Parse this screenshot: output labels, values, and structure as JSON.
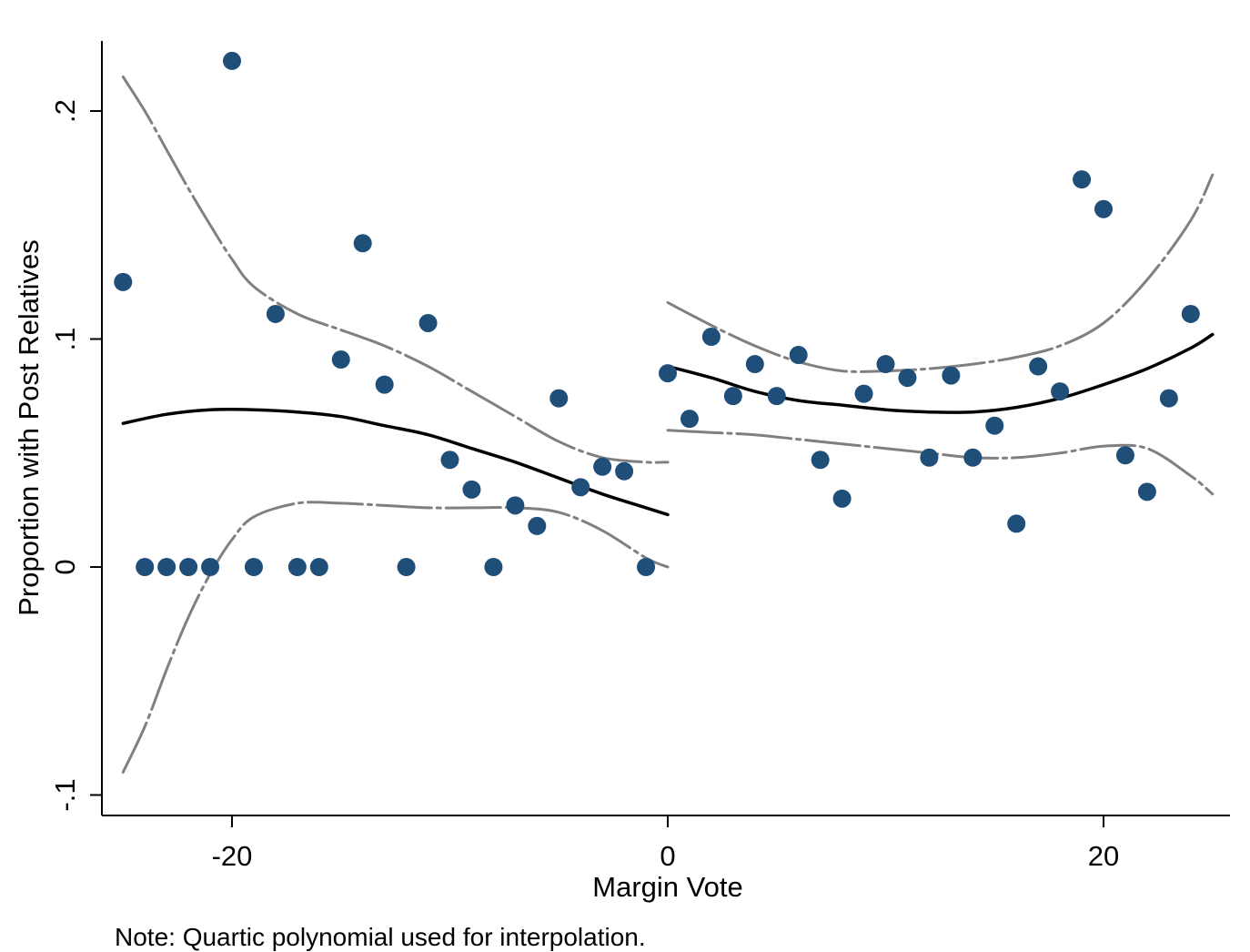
{
  "chart_data": {
    "type": "scatter",
    "title": "",
    "xlabel": "Margin Vote",
    "ylabel": "Proportion with Post Relatives",
    "xlim": [
      -26,
      26
    ],
    "ylim": [
      -0.109,
      0.23
    ],
    "x_ticks": [
      -20,
      0,
      20
    ],
    "x_tick_labels": [
      "-20",
      "0",
      "20"
    ],
    "y_ticks": [
      -0.1,
      0,
      0.1,
      0.2
    ],
    "y_tick_labels": [
      "-.1",
      "0",
      ".1",
      ".2"
    ],
    "grid": false,
    "legend": "none",
    "note": "Note: Quartic polynomial used for interpolation.",
    "points": {
      "color": "#1f4e79",
      "x": [
        -25,
        -24,
        -23,
        -22,
        -21,
        -20,
        -19,
        -18,
        -17,
        -16,
        -15,
        -14,
        -13,
        -12,
        -11,
        -10,
        -9,
        -8,
        -7,
        -6,
        -5,
        -4,
        -3,
        -2,
        -1,
        0,
        1,
        2,
        3,
        4,
        5,
        6,
        7,
        8,
        9,
        10,
        11,
        12,
        13,
        14,
        15,
        16,
        17,
        18,
        19,
        20,
        21,
        22,
        23,
        24
      ],
      "y": [
        0.125,
        0,
        0,
        0,
        0,
        0.222,
        0,
        0.111,
        0,
        0,
        0.091,
        0.142,
        0.08,
        0,
        0.107,
        0.047,
        0.034,
        0,
        0.027,
        0.018,
        0.074,
        0.035,
        0.044,
        0.042,
        0,
        0.085,
        0.065,
        0.101,
        0.075,
        0.089,
        0.075,
        0.093,
        0.047,
        0.03,
        0.076,
        0.089,
        0.083,
        0.048,
        0.084,
        0.048,
        0.062,
        0.019,
        0.088,
        0.077,
        0.17,
        0.157,
        0.049,
        0.033,
        0.074,
        0.111
      ]
    },
    "series": [
      {
        "role": "fit",
        "color": "#000000",
        "dash": "solid",
        "x": [
          -25,
          -23,
          -21,
          -19,
          -17,
          -15,
          -13,
          -11,
          -9,
          -7,
          -5,
          -3,
          -1,
          0
        ],
        "y": [
          0.063,
          0.067,
          0.069,
          0.069,
          0.068,
          0.066,
          0.062,
          0.058,
          0.052,
          0.046,
          0.039,
          0.032,
          0.026,
          0.023
        ]
      },
      {
        "role": "fit",
        "color": "#000000",
        "dash": "solid",
        "x": [
          0,
          2,
          4,
          6,
          8,
          10,
          12,
          14,
          16,
          18,
          20,
          22,
          24,
          25
        ],
        "y": [
          0.088,
          0.083,
          0.077,
          0.073,
          0.071,
          0.069,
          0.068,
          0.068,
          0.07,
          0.074,
          0.08,
          0.087,
          0.096,
          0.102
        ]
      },
      {
        "role": "ci-upper",
        "color": "#808080",
        "dash": "dashed",
        "x": [
          -25,
          -24,
          -23,
          -22,
          -21,
          -20,
          -19,
          -17,
          -15,
          -13,
          -11,
          -9,
          -7,
          -5,
          -3,
          -1,
          0
        ],
        "y": [
          0.215,
          0.2,
          0.183,
          0.166,
          0.15,
          0.135,
          0.123,
          0.111,
          0.104,
          0.097,
          0.088,
          0.077,
          0.066,
          0.055,
          0.048,
          0.046,
          0.046
        ]
      },
      {
        "role": "ci-lower",
        "color": "#808080",
        "dash": "dashed",
        "x": [
          -25,
          -24,
          -23,
          -22,
          -21,
          -20,
          -19,
          -17,
          -15,
          -13,
          -11,
          -9,
          -7,
          -5,
          -3,
          -1,
          0
        ],
        "y": [
          -0.09,
          -0.07,
          -0.045,
          -0.022,
          -0.003,
          0.012,
          0.022,
          0.028,
          0.028,
          0.027,
          0.026,
          0.026,
          0.026,
          0.024,
          0.016,
          0.004,
          0
        ]
      },
      {
        "role": "ci-upper",
        "color": "#808080",
        "dash": "dashed",
        "x": [
          0,
          2,
          4,
          6,
          8,
          10,
          12,
          14,
          16,
          18,
          20,
          22,
          24,
          25
        ],
        "y": [
          0.116,
          0.106,
          0.097,
          0.09,
          0.086,
          0.086,
          0.087,
          0.089,
          0.092,
          0.097,
          0.107,
          0.126,
          0.152,
          0.172
        ]
      },
      {
        "role": "ci-lower",
        "color": "#808080",
        "dash": "dashed",
        "x": [
          0,
          2,
          4,
          6,
          8,
          10,
          12,
          14,
          16,
          18,
          20,
          22,
          24,
          25
        ],
        "y": [
          0.06,
          0.059,
          0.058,
          0.056,
          0.054,
          0.052,
          0.05,
          0.048,
          0.048,
          0.05,
          0.053,
          0.052,
          0.04,
          0.032
        ]
      }
    ]
  }
}
